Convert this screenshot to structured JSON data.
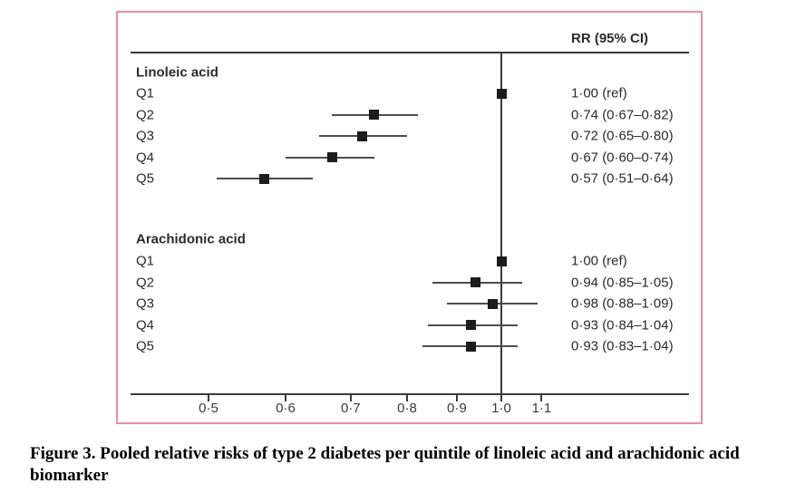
{
  "figure": {
    "column_header": "RR (95% CI)",
    "caption": "Figure 3. Pooled relative risks of type 2 diabetes per quintile of linoleic acid and arachidonic acid biomarker"
  },
  "colors": {
    "border_pink": "#e88ea4",
    "rule": "#3c3c3c",
    "ci_line": "#4d4d4d",
    "marker": "#1c1c1c",
    "ink": "#2b2b2b"
  },
  "chart_data": {
    "type": "forest",
    "x_scale": "log10",
    "reference_value": 1.0,
    "column_header": "RR (95% CI)",
    "ticks": [
      {
        "value": 0.5,
        "label": "0·5"
      },
      {
        "value": 0.6,
        "label": "0·6"
      },
      {
        "value": 0.7,
        "label": "0·7"
      },
      {
        "value": 0.8,
        "label": "0·8"
      },
      {
        "value": 0.9,
        "label": "0·9"
      },
      {
        "value": 1.0,
        "label": "1·0"
      },
      {
        "value": 1.1,
        "label": "1·1"
      }
    ],
    "groups": [
      {
        "label": "Linoleic acid",
        "rows": [
          {
            "label": "Q1",
            "rr": 1.0,
            "ci_low": null,
            "ci_high": null,
            "text": "1·00 (ref)"
          },
          {
            "label": "Q2",
            "rr": 0.74,
            "ci_low": 0.67,
            "ci_high": 0.82,
            "text": "0·74 (0·67–0·82)"
          },
          {
            "label": "Q3",
            "rr": 0.72,
            "ci_low": 0.65,
            "ci_high": 0.8,
            "text": "0·72 (0·65–0·80)"
          },
          {
            "label": "Q4",
            "rr": 0.67,
            "ci_low": 0.6,
            "ci_high": 0.74,
            "text": "0·67 (0·60–0·74)"
          },
          {
            "label": "Q5",
            "rr": 0.57,
            "ci_low": 0.51,
            "ci_high": 0.64,
            "text": "0·57 (0·51–0·64)"
          }
        ]
      },
      {
        "label": "Arachidonic acid",
        "rows": [
          {
            "label": "Q1",
            "rr": 1.0,
            "ci_low": null,
            "ci_high": null,
            "text": "1·00 (ref)"
          },
          {
            "label": "Q2",
            "rr": 0.94,
            "ci_low": 0.85,
            "ci_high": 1.05,
            "text": "0·94 (0·85–1·05)"
          },
          {
            "label": "Q3",
            "rr": 0.98,
            "ci_low": 0.88,
            "ci_high": 1.09,
            "text": "0·98 (0·88–1·09)"
          },
          {
            "label": "Q4",
            "rr": 0.93,
            "ci_low": 0.84,
            "ci_high": 1.04,
            "text": "0·93 (0·84–1·04)"
          },
          {
            "label": "Q5",
            "rr": 0.93,
            "ci_low": 0.83,
            "ci_high": 1.04,
            "text": "0·93 (0·83–1·04)"
          }
        ]
      }
    ]
  }
}
